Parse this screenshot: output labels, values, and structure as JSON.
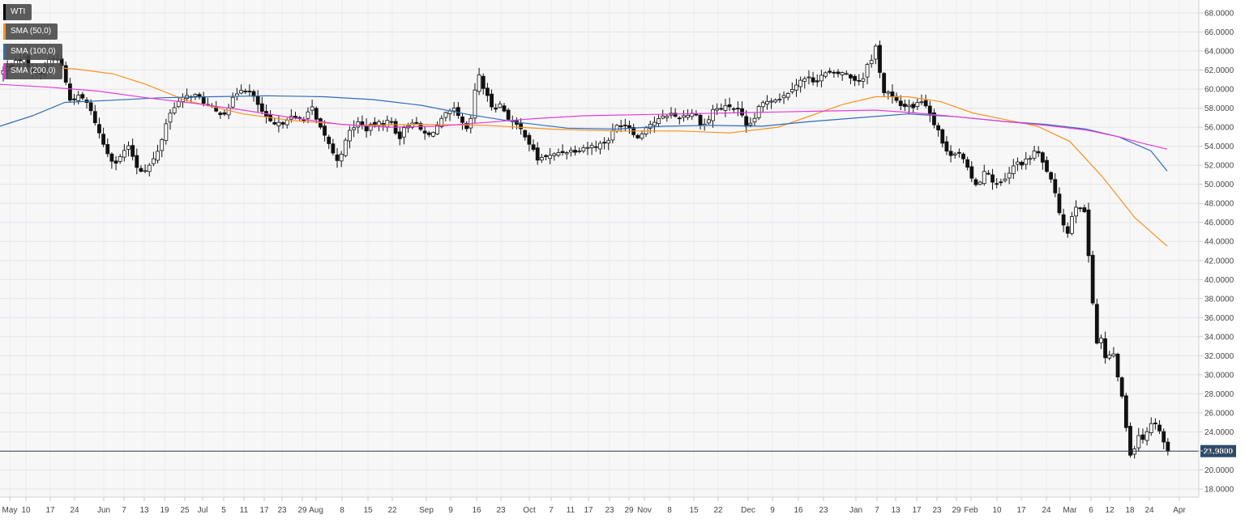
{
  "chart_data": {
    "type": "candlestick",
    "title": "",
    "xlabel": "",
    "ylabel": "",
    "ylim": [
      17.0,
      69.0
    ],
    "y_ticks": [
      "18.0000",
      "20.0000",
      "22.0000",
      "24.0000",
      "26.0000",
      "28.0000",
      "30.0000",
      "32.0000",
      "34.0000",
      "36.0000",
      "38.0000",
      "40.0000",
      "42.0000",
      "44.0000",
      "46.0000",
      "48.0000",
      "50.0000",
      "52.0000",
      "54.0000",
      "56.0000",
      "58.0000",
      "60.0000",
      "62.0000",
      "64.0000",
      "66.0000",
      "68.0000"
    ],
    "x_tick_labels": [
      "May",
      "10",
      "17",
      "24",
      "Jun",
      "7",
      "13",
      "19",
      "25",
      "Jul",
      "5",
      "11",
      "17",
      "23",
      "29",
      "Aug",
      "8",
      "15",
      "22",
      "Sep",
      "9",
      "16",
      "23",
      "Oct",
      "7",
      "11",
      "17",
      "23",
      "29",
      "Nov",
      "8",
      "15",
      "22",
      "Dec",
      "9",
      "16",
      "23",
      "Jan",
      "7",
      "13",
      "17",
      "23",
      "29",
      "Feb",
      "10",
      "17",
      "24",
      "Mar",
      "6",
      "12",
      "18",
      "24",
      "Apr"
    ],
    "last_price": "21.9800",
    "legend": [
      {
        "label": "WTI",
        "color": "#000000"
      },
      {
        "label": "SMA (50,0)",
        "color": "#f7931e"
      },
      {
        "label": "SMA (100,0)",
        "color": "#2f6db5"
      },
      {
        "label": "SMA (200,0)",
        "color": "#e83ad8"
      }
    ],
    "close_path": [
      [
        0,
        61.6
      ],
      [
        10,
        62.3
      ],
      [
        20,
        62.8
      ],
      [
        28,
        63.5
      ],
      [
        38,
        62.0
      ],
      [
        48,
        61.6
      ],
      [
        56,
        62.3
      ],
      [
        62,
        63.1
      ],
      [
        70,
        63.2
      ],
      [
        78,
        62.3
      ],
      [
        85,
        58.8
      ],
      [
        95,
        59.2
      ],
      [
        105,
        58.9
      ],
      [
        116,
        56.9
      ],
      [
        126,
        54.5
      ],
      [
        136,
        52.8
      ],
      [
        145,
        52.2
      ],
      [
        152,
        53.5
      ],
      [
        160,
        53.9
      ],
      [
        168,
        51.9
      ],
      [
        176,
        51.4
      ],
      [
        186,
        52.1
      ],
      [
        196,
        53.6
      ],
      [
        206,
        56.8
      ],
      [
        216,
        58.4
      ],
      [
        228,
        59.1
      ],
      [
        238,
        59.5
      ],
      [
        248,
        58.9
      ],
      [
        258,
        58.2
      ],
      [
        268,
        57.5
      ],
      [
        278,
        57.6
      ],
      [
        288,
        59.0
      ],
      [
        296,
        60.1
      ],
      [
        306,
        59.9
      ],
      [
        316,
        58.7
      ],
      [
        326,
        57.2
      ],
      [
        336,
        56.2
      ],
      [
        346,
        56.3
      ],
      [
        356,
        57.1
      ],
      [
        366,
        56.8
      ],
      [
        376,
        57.0
      ],
      [
        384,
        58.2
      ],
      [
        392,
        56.3
      ],
      [
        400,
        55.1
      ],
      [
        408,
        54.0
      ],
      [
        414,
        52.3
      ],
      [
        422,
        53.5
      ],
      [
        432,
        55.7
      ],
      [
        442,
        56.5
      ],
      [
        452,
        55.8
      ],
      [
        462,
        56.3
      ],
      [
        472,
        56.4
      ],
      [
        482,
        56.7
      ],
      [
        492,
        54.8
      ],
      [
        500,
        56.0
      ],
      [
        508,
        56.7
      ],
      [
        518,
        55.8
      ],
      [
        528,
        55.0
      ],
      [
        540,
        56.2
      ],
      [
        550,
        57.3
      ],
      [
        560,
        57.8
      ],
      [
        568,
        56.7
      ],
      [
        578,
        55.3
      ],
      [
        584,
        58.7
      ],
      [
        590,
        61.8
      ],
      [
        598,
        59.7
      ],
      [
        608,
        58.0
      ],
      [
        618,
        58.4
      ],
      [
        626,
        57.1
      ],
      [
        636,
        56.2
      ],
      [
        646,
        55.5
      ],
      [
        656,
        53.8
      ],
      [
        664,
        52.5
      ],
      [
        672,
        53.0
      ],
      [
        680,
        52.9
      ],
      [
        690,
        53.4
      ],
      [
        700,
        53.5
      ],
      [
        710,
        53.6
      ],
      [
        720,
        53.9
      ],
      [
        730,
        54.0
      ],
      [
        740,
        54.2
      ],
      [
        750,
        54.6
      ],
      [
        760,
        56.1
      ],
      [
        770,
        56.4
      ],
      [
        778,
        55.9
      ],
      [
        788,
        54.7
      ],
      [
        796,
        56.1
      ],
      [
        806,
        56.5
      ],
      [
        816,
        56.9
      ],
      [
        826,
        57.5
      ],
      [
        836,
        57.0
      ],
      [
        846,
        57.3
      ],
      [
        856,
        57.6
      ],
      [
        866,
        56.2
      ],
      [
        872,
        56.4
      ],
      [
        880,
        57.9
      ],
      [
        890,
        58.0
      ],
      [
        900,
        58.2
      ],
      [
        908,
        57.9
      ],
      [
        914,
        57.5
      ],
      [
        920,
        55.8
      ],
      [
        930,
        56.8
      ],
      [
        938,
        58.3
      ],
      [
        948,
        58.9
      ],
      [
        958,
        59.0
      ],
      [
        968,
        59.3
      ],
      [
        976,
        60.1
      ],
      [
        986,
        60.8
      ],
      [
        996,
        61.2
      ],
      [
        1006,
        60.8
      ],
      [
        1014,
        61.5
      ],
      [
        1022,
        61.7
      ],
      [
        1030,
        61.5
      ],
      [
        1040,
        61.8
      ],
      [
        1050,
        61.2
      ],
      [
        1056,
        61.0
      ],
      [
        1064,
        60.9
      ],
      [
        1070,
        62.8
      ],
      [
        1076,
        63.0
      ],
      [
        1082,
        65.0
      ],
      [
        1088,
        59.7
      ],
      [
        1096,
        59.6
      ],
      [
        1104,
        58.8
      ],
      [
        1112,
        58.2
      ],
      [
        1120,
        58.4
      ],
      [
        1128,
        58.1
      ],
      [
        1136,
        58.9
      ],
      [
        1144,
        58.2
      ],
      [
        1150,
        56.8
      ],
      [
        1158,
        55.7
      ],
      [
        1164,
        54.0
      ],
      [
        1170,
        53.0
      ],
      [
        1176,
        53.4
      ],
      [
        1184,
        53.4
      ],
      [
        1192,
        51.9
      ],
      [
        1200,
        50.3
      ],
      [
        1208,
        50.0
      ],
      [
        1214,
        51.6
      ],
      [
        1222,
        50.6
      ],
      [
        1230,
        50.0
      ],
      [
        1238,
        50.2
      ],
      [
        1246,
        51.2
      ],
      [
        1254,
        52.3
      ],
      [
        1262,
        52.2
      ],
      [
        1270,
        52.7
      ],
      [
        1278,
        53.7
      ],
      [
        1286,
        52.3
      ],
      [
        1294,
        51.1
      ],
      [
        1302,
        48.8
      ],
      [
        1308,
        46.8
      ],
      [
        1314,
        45.5
      ],
      [
        1318,
        44.7
      ],
      [
        1324,
        47.5
      ],
      [
        1330,
        48.0
      ],
      [
        1336,
        47.4
      ],
      [
        1340,
        46.3
      ],
      [
        1344,
        41.3
      ],
      [
        1350,
        36.2
      ],
      [
        1354,
        32.8
      ],
      [
        1358,
        34.0
      ],
      [
        1364,
        31.5
      ],
      [
        1370,
        32.2
      ],
      [
        1376,
        31.8
      ],
      [
        1380,
        29.3
      ],
      [
        1386,
        26.9
      ],
      [
        1390,
        24.0
      ],
      [
        1394,
        21.6
      ],
      [
        1400,
        22.5
      ],
      [
        1404,
        24.0
      ],
      [
        1408,
        22.6
      ],
      [
        1412,
        24.0
      ],
      [
        1418,
        24.4
      ],
      [
        1424,
        25.3
      ],
      [
        1430,
        24.3
      ],
      [
        1436,
        22.9
      ],
      [
        1442,
        21.98
      ]
    ],
    "sma50": [
      [
        60,
        62.3
      ],
      [
        95,
        62.1
      ],
      [
        140,
        61.6
      ],
      [
        180,
        60.5
      ],
      [
        230,
        58.8
      ],
      [
        300,
        57.4
      ],
      [
        360,
        56.7
      ],
      [
        440,
        56.2
      ],
      [
        520,
        56.3
      ],
      [
        600,
        56.2
      ],
      [
        680,
        55.8
      ],
      [
        760,
        55.6
      ],
      [
        840,
        55.6
      ],
      [
        900,
        55.4
      ],
      [
        960,
        56.0
      ],
      [
        1000,
        57.2
      ],
      [
        1040,
        58.4
      ],
      [
        1080,
        59.2
      ],
      [
        1120,
        59.2
      ],
      [
        1160,
        58.7
      ],
      [
        1200,
        57.5
      ],
      [
        1240,
        56.8
      ],
      [
        1280,
        56.1
      ],
      [
        1320,
        54.5
      ],
      [
        1360,
        50.8
      ],
      [
        1400,
        46.5
      ],
      [
        1440,
        43.5
      ]
    ],
    "sma100": [
      [
        0,
        56.1
      ],
      [
        40,
        57.2
      ],
      [
        80,
        58.6
      ],
      [
        130,
        58.8
      ],
      [
        200,
        59.1
      ],
      [
        260,
        59.2
      ],
      [
        330,
        59.3
      ],
      [
        400,
        59.2
      ],
      [
        460,
        58.9
      ],
      [
        520,
        58.3
      ],
      [
        580,
        57.3
      ],
      [
        640,
        56.5
      ],
      [
        700,
        55.9
      ],
      [
        760,
        55.8
      ],
      [
        820,
        56.1
      ],
      [
        880,
        56.2
      ],
      [
        940,
        56.1
      ],
      [
        1000,
        56.6
      ],
      [
        1060,
        57.0
      ],
      [
        1120,
        57.4
      ],
      [
        1180,
        57.1
      ],
      [
        1240,
        56.6
      ],
      [
        1290,
        56.3
      ],
      [
        1340,
        55.8
      ],
      [
        1380,
        55.0
      ],
      [
        1420,
        53.5
      ],
      [
        1440,
        51.4
      ]
    ],
    "sma200": [
      [
        0,
        60.5
      ],
      [
        60,
        60.2
      ],
      [
        120,
        59.8
      ],
      [
        180,
        59.1
      ],
      [
        240,
        58.5
      ],
      [
        300,
        57.8
      ],
      [
        360,
        57.0
      ],
      [
        420,
        56.3
      ],
      [
        480,
        56.0
      ],
      [
        540,
        56.1
      ],
      [
        600,
        56.5
      ],
      [
        660,
        56.9
      ],
      [
        720,
        57.2
      ],
      [
        780,
        57.3
      ],
      [
        840,
        57.4
      ],
      [
        900,
        57.5
      ],
      [
        960,
        57.6
      ],
      [
        1020,
        57.7
      ],
      [
        1080,
        57.8
      ],
      [
        1130,
        57.5
      ],
      [
        1180,
        57.1
      ],
      [
        1240,
        56.6
      ],
      [
        1290,
        56.2
      ],
      [
        1340,
        55.7
      ],
      [
        1380,
        55.0
      ],
      [
        1410,
        54.3
      ],
      [
        1440,
        53.7
      ]
    ]
  }
}
